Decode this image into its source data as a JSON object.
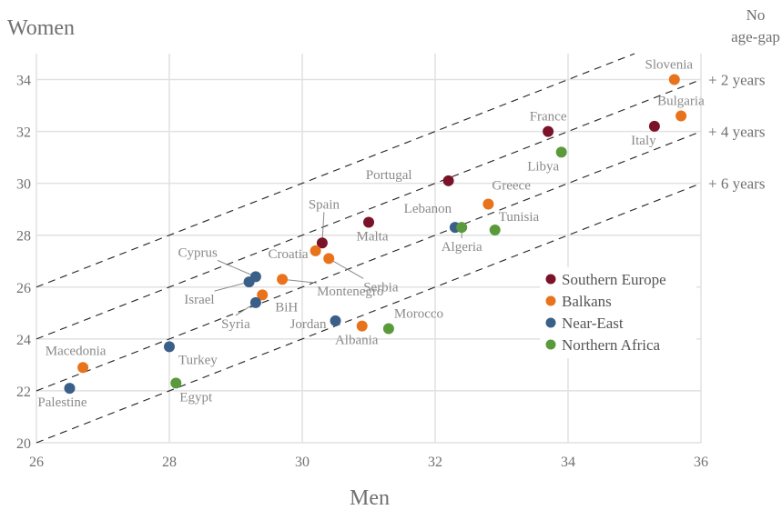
{
  "chart_data": {
    "type": "scatter",
    "xlabel": "Men",
    "ylabel": "Women",
    "xlim": [
      26,
      36
    ],
    "ylim": [
      20,
      35
    ],
    "xticks": [
      26,
      28,
      30,
      32,
      34,
      36
    ],
    "yticks": [
      20,
      22,
      24,
      26,
      28,
      30,
      32,
      34
    ],
    "grid": true,
    "legend_position": "right",
    "series": [
      {
        "name": "Southern Europe",
        "color": "#7b1328",
        "points": [
          {
            "label": "Spain",
            "x": 30.3,
            "y": 27.7
          },
          {
            "label": "Malta",
            "x": 31.0,
            "y": 28.5
          },
          {
            "label": "Portugal",
            "x": 32.2,
            "y": 30.1
          },
          {
            "label": "France",
            "x": 33.7,
            "y": 32.0
          },
          {
            "label": "Italy",
            "x": 35.3,
            "y": 32.2
          }
        ]
      },
      {
        "name": "Balkans",
        "color": "#e8731c",
        "points": [
          {
            "label": "Macedonia",
            "x": 26.7,
            "y": 22.9
          },
          {
            "label": "BiH",
            "x": 29.4,
            "y": 25.7
          },
          {
            "label": "Montenegro",
            "x": 29.7,
            "y": 26.3
          },
          {
            "label": "Croatia",
            "x": 30.2,
            "y": 27.4
          },
          {
            "label": "Serbia",
            "x": 30.4,
            "y": 27.1
          },
          {
            "label": "Albania",
            "x": 30.9,
            "y": 24.5
          },
          {
            "label": "Greece",
            "x": 32.8,
            "y": 29.2
          },
          {
            "label": "Slovenia",
            "x": 35.6,
            "y": 34.0
          },
          {
            "label": "Bulgaria",
            "x": 35.7,
            "y": 32.6
          }
        ]
      },
      {
        "name": "Near-East",
        "color": "#3a5f88",
        "points": [
          {
            "label": "Palestine",
            "x": 26.5,
            "y": 22.1
          },
          {
            "label": "Turkey",
            "x": 28.0,
            "y": 23.7
          },
          {
            "label": "Israel",
            "x": 29.2,
            "y": 26.2
          },
          {
            "label": "Cyprus",
            "x": 29.3,
            "y": 26.4
          },
          {
            "label": "Syria",
            "x": 29.3,
            "y": 25.4
          },
          {
            "label": "Jordan",
            "x": 30.5,
            "y": 24.7
          },
          {
            "label": "Lebanon",
            "x": 32.3,
            "y": 28.3
          }
        ]
      },
      {
        "name": "Northern Africa",
        "color": "#5a9a3a",
        "points": [
          {
            "label": "Egypt",
            "x": 28.1,
            "y": 22.3
          },
          {
            "label": "Morocco",
            "x": 31.3,
            "y": 24.4
          },
          {
            "label": "Algeria",
            "x": 32.4,
            "y": 28.3
          },
          {
            "label": "Tunisia",
            "x": 32.9,
            "y": 28.2
          },
          {
            "label": "Libya",
            "x": 33.9,
            "y": 31.2
          }
        ]
      }
    ],
    "reference_lines": [
      {
        "offset": 0,
        "label_lines": [
          "No",
          "age-gap"
        ]
      },
      {
        "offset": 2,
        "label_lines": [
          "+ 2 years"
        ]
      },
      {
        "offset": 4,
        "label_lines": [
          "+ 4 years"
        ]
      },
      {
        "offset": 6,
        "label_lines": [
          "+ 6 years"
        ]
      }
    ]
  }
}
